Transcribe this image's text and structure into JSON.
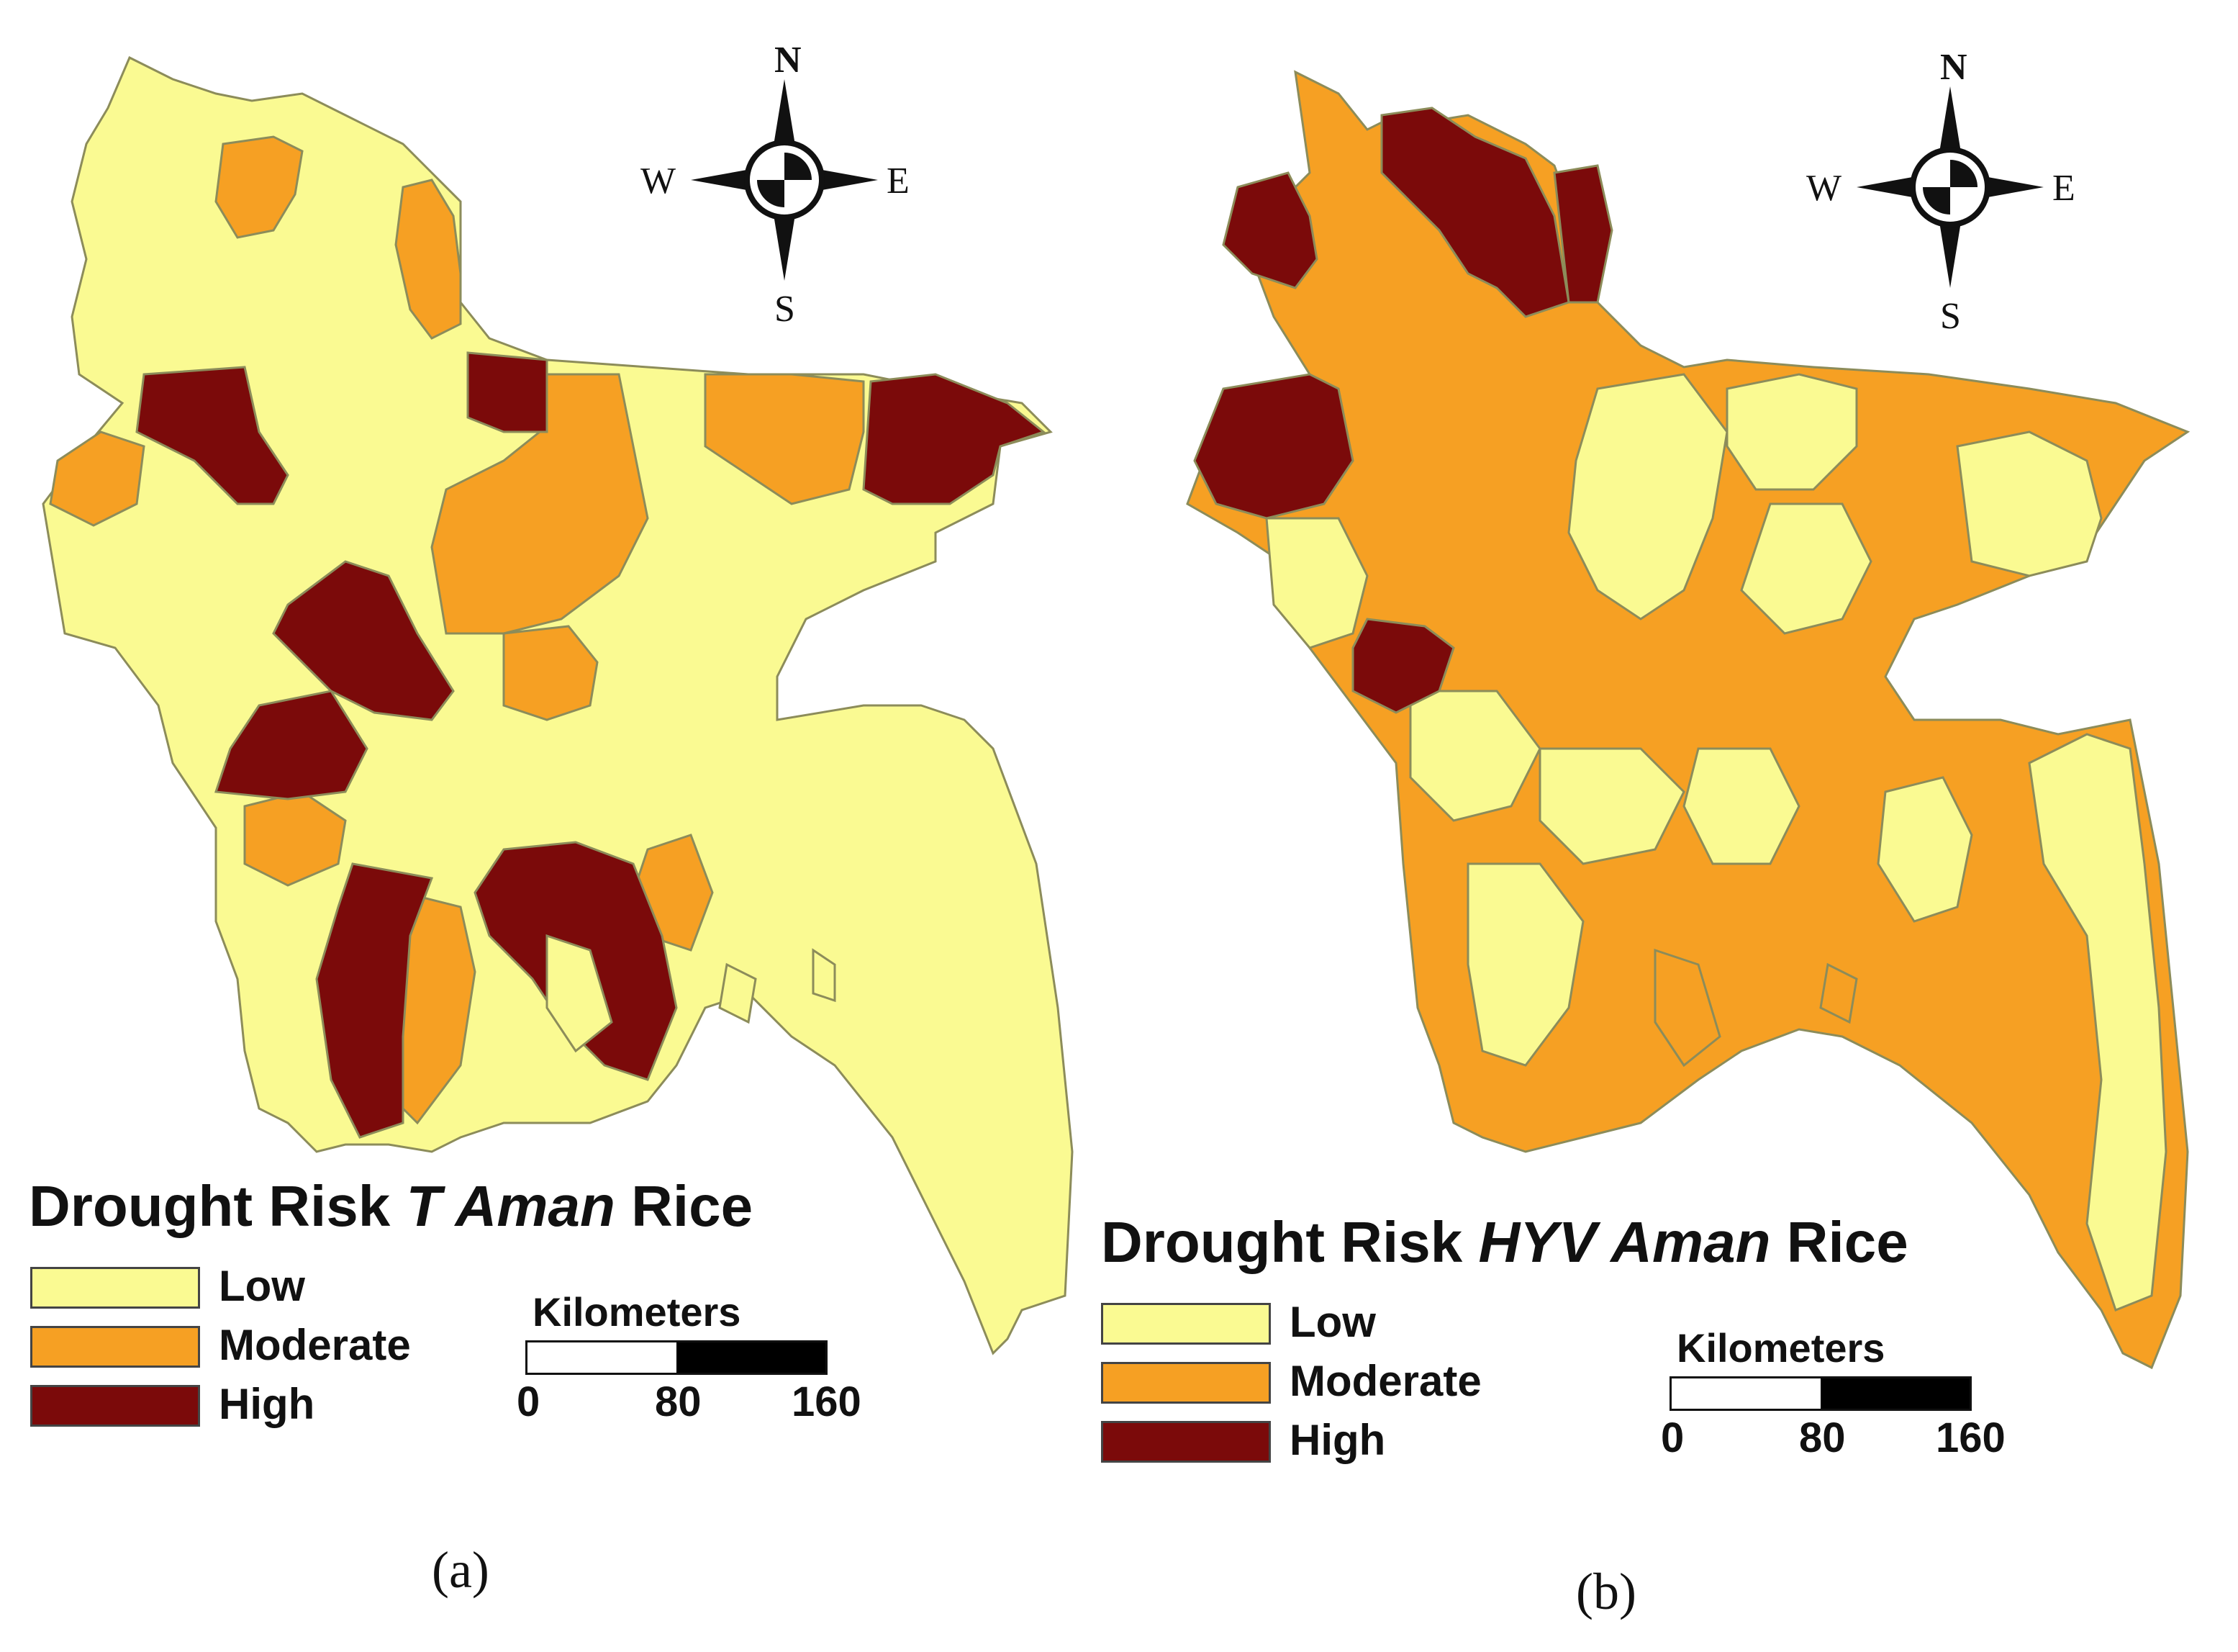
{
  "colors": {
    "low": "#fafa92",
    "moderate": "#f6a023",
    "high": "#7b0a0a",
    "border": "#8c8c5a"
  },
  "legend": {
    "low": "Low",
    "moderate": "Moderate",
    "high": "High"
  },
  "compass": {
    "north": "N",
    "south": "S",
    "east": "E",
    "west": "W"
  },
  "scale": {
    "title": "Kilometers",
    "ticks": [
      "0",
      "80",
      "160"
    ]
  },
  "panels": [
    {
      "caption": "(a)",
      "title_prefix": "Drought Risk ",
      "title_italic": "T Aman",
      "title_suffix": " Rice"
    },
    {
      "caption": "(b)",
      "title_prefix": "Drought Risk ",
      "title_italic": "HYV Aman",
      "title_suffix": " Rice"
    }
  ]
}
